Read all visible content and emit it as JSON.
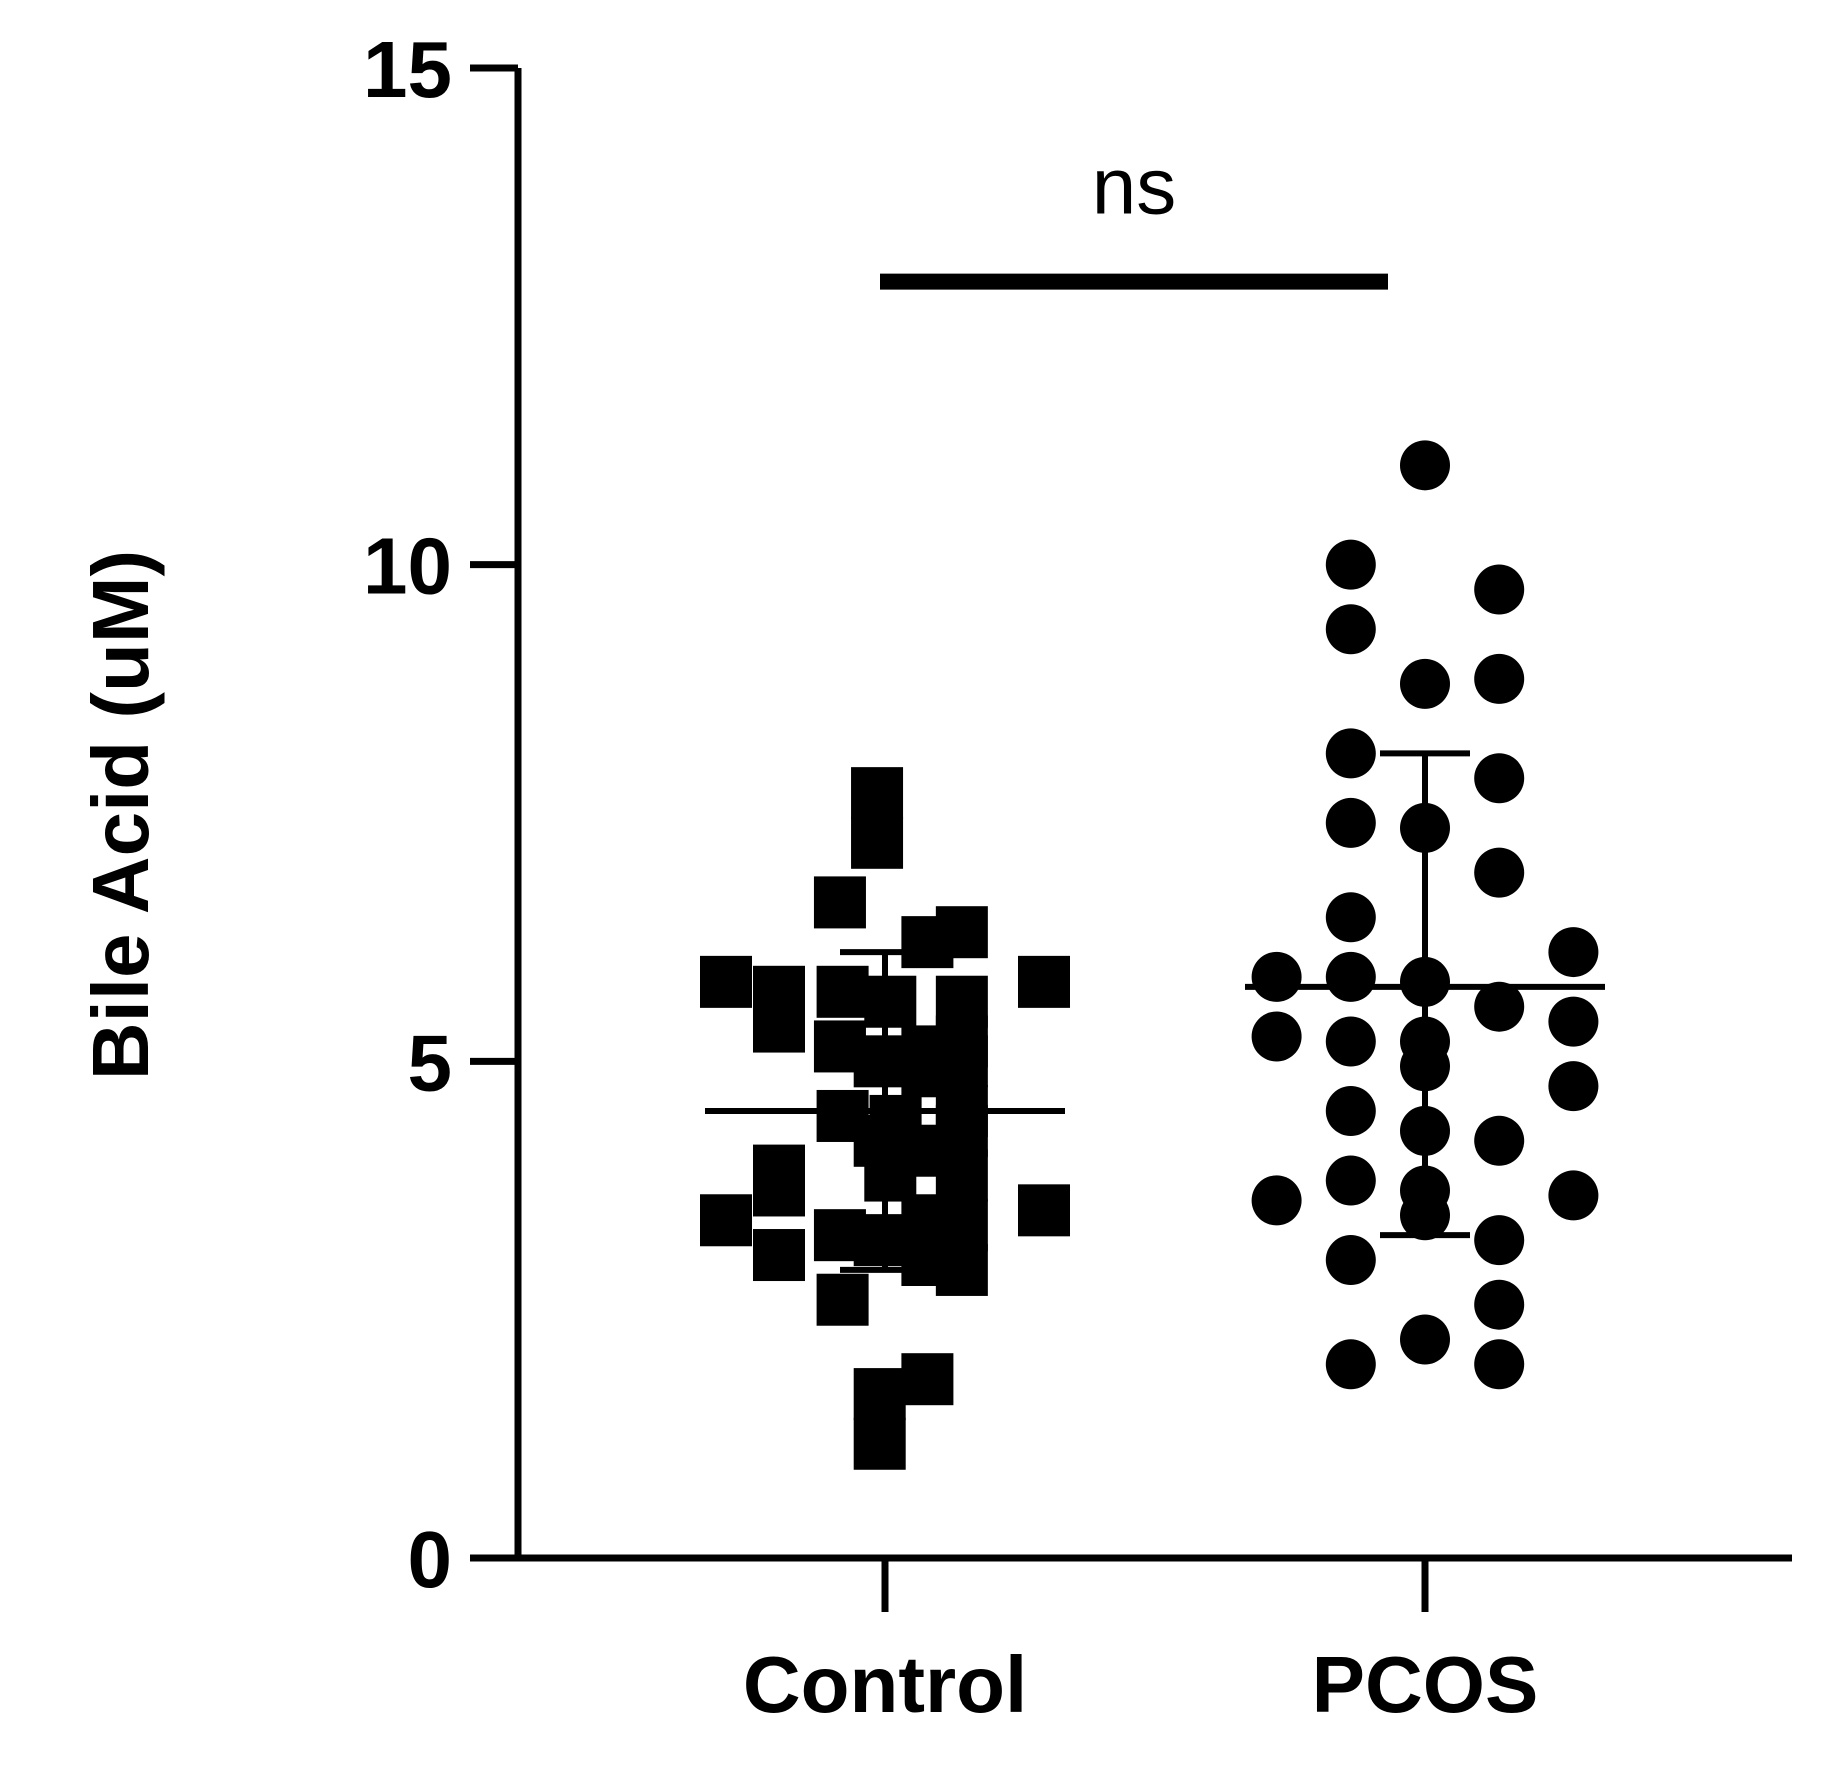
{
  "chart_data": {
    "type": "scatter",
    "title": "",
    "xlabel": "",
    "ylabel": "Bile Acid (uM)",
    "ylim": [
      0,
      15
    ],
    "yticks": [
      0,
      5,
      10,
      15
    ],
    "categories": [
      "Control",
      "PCOS"
    ],
    "series": [
      {
        "name": "Control",
        "marker": "square",
        "points": [
          {
            "x": -0.015,
            "y": 7.7
          },
          {
            "x": -0.015,
            "y": 7.2
          },
          {
            "x": -0.085,
            "y": 6.6
          },
          {
            "x": 0.145,
            "y": 6.3
          },
          {
            "x": 0.08,
            "y": 6.2
          },
          {
            "x": -0.3,
            "y": 5.8
          },
          {
            "x": 0.3,
            "y": 5.8
          },
          {
            "x": -0.2,
            "y": 5.7
          },
          {
            "x": -0.08,
            "y": 5.7
          },
          {
            "x": 0.01,
            "y": 5.6
          },
          {
            "x": 0.145,
            "y": 5.6
          },
          {
            "x": -0.2,
            "y": 5.35
          },
          {
            "x": 0.145,
            "y": 5.2
          },
          {
            "x": -0.085,
            "y": 5.15
          },
          {
            "x": 0.08,
            "y": 5.1
          },
          {
            "x": -0.01,
            "y": 5.0
          },
          {
            "x": 0.145,
            "y": 5.0
          },
          {
            "x": 0.08,
            "y": 4.9
          },
          {
            "x": 0.145,
            "y": 4.5
          },
          {
            "x": -0.08,
            "y": 4.45
          },
          {
            "x": 0.02,
            "y": 4.4
          },
          {
            "x": 0.145,
            "y": 4.3
          },
          {
            "x": -0.01,
            "y": 4.2
          },
          {
            "x": 0.08,
            "y": 4.1
          },
          {
            "x": -0.2,
            "y": 3.9
          },
          {
            "x": 0.145,
            "y": 3.85
          },
          {
            "x": 0.01,
            "y": 3.85
          },
          {
            "x": -0.2,
            "y": 3.7
          },
          {
            "x": -0.3,
            "y": 3.4
          },
          {
            "x": 0.3,
            "y": 3.5
          },
          {
            "x": 0.145,
            "y": 3.35
          },
          {
            "x": 0.08,
            "y": 3.4
          },
          {
            "x": -0.085,
            "y": 3.25
          },
          {
            "x": -0.01,
            "y": 3.2
          },
          {
            "x": -0.2,
            "y": 3.05
          },
          {
            "x": 0.145,
            "y": 2.9
          },
          {
            "x": 0.08,
            "y": 3.0
          },
          {
            "x": -0.08,
            "y": 2.6
          },
          {
            "x": 0.08,
            "y": 1.8
          },
          {
            "x": -0.01,
            "y": 1.65
          },
          {
            "x": -0.01,
            "y": 1.15
          }
        ],
        "mean": 4.5,
        "sd_upper": 6.1,
        "sd_lower": 2.9
      },
      {
        "name": "PCOS",
        "marker": "circle",
        "points": [
          {
            "x": 0.0,
            "y": 11.0
          },
          {
            "x": -0.14,
            "y": 10.0
          },
          {
            "x": 0.14,
            "y": 9.75
          },
          {
            "x": -0.14,
            "y": 9.35
          },
          {
            "x": 0.0,
            "y": 8.8
          },
          {
            "x": 0.14,
            "y": 8.85
          },
          {
            "x": -0.14,
            "y": 8.1
          },
          {
            "x": 0.14,
            "y": 7.85
          },
          {
            "x": -0.14,
            "y": 7.4
          },
          {
            "x": 0.0,
            "y": 7.35
          },
          {
            "x": 0.14,
            "y": 6.9
          },
          {
            "x": -0.14,
            "y": 6.45
          },
          {
            "x": -0.28,
            "y": 5.85
          },
          {
            "x": -0.14,
            "y": 5.85
          },
          {
            "x": 0.0,
            "y": 5.8
          },
          {
            "x": 0.28,
            "y": 6.1
          },
          {
            "x": 0.14,
            "y": 5.55
          },
          {
            "x": -0.28,
            "y": 5.25
          },
          {
            "x": -0.14,
            "y": 5.2
          },
          {
            "x": 0.0,
            "y": 5.2
          },
          {
            "x": 0.28,
            "y": 5.4
          },
          {
            "x": 0.0,
            "y": 4.95
          },
          {
            "x": 0.28,
            "y": 4.75
          },
          {
            "x": -0.14,
            "y": 4.5
          },
          {
            "x": 0.0,
            "y": 4.3
          },
          {
            "x": 0.14,
            "y": 4.2
          },
          {
            "x": -0.14,
            "y": 3.8
          },
          {
            "x": 0.0,
            "y": 3.7
          },
          {
            "x": -0.28,
            "y": 3.6
          },
          {
            "x": 0.28,
            "y": 3.65
          },
          {
            "x": 0.0,
            "y": 3.45
          },
          {
            "x": 0.14,
            "y": 3.2
          },
          {
            "x": -0.14,
            "y": 3.0
          },
          {
            "x": 0.14,
            "y": 2.55
          },
          {
            "x": 0.0,
            "y": 2.2
          },
          {
            "x": -0.14,
            "y": 1.95
          },
          {
            "x": 0.14,
            "y": 1.95
          }
        ],
        "mean": 5.75,
        "sd_upper": 8.1,
        "sd_lower": 3.25
      }
    ],
    "annotations": [
      {
        "text": "ns",
        "type": "significance-bracket",
        "between": [
          "Control",
          "PCOS"
        ],
        "y": 12.85
      }
    ],
    "grid": false,
    "legend": "none"
  }
}
